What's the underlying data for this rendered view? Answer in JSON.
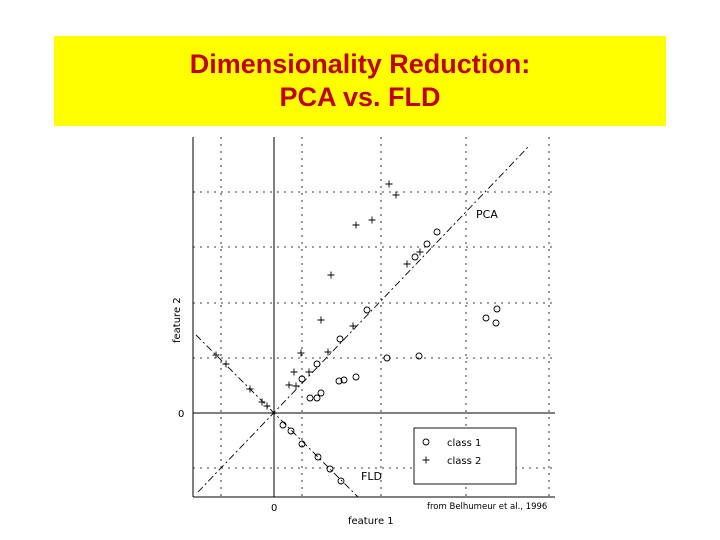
{
  "slide": {
    "title_line1": "Dimensionality Reduction:",
    "title_line2": "PCA vs. FLD",
    "title_color": "#c00000",
    "band_color": "#ffff00",
    "credit": "from Belhumeur et al., 1996"
  },
  "chart_data": {
    "type": "scatter",
    "xlabel": "feature 1",
    "ylabel": "feature 2",
    "xticks": [
      "0"
    ],
    "yticks": [
      "0"
    ],
    "grid": true,
    "legend": {
      "placement": "bottom-right",
      "entries": [
        {
          "marker": "o",
          "label": "class 1"
        },
        {
          "marker": "+",
          "label": "class 2"
        }
      ]
    },
    "annotations": [
      "PCA",
      "FLD"
    ]
  }
}
